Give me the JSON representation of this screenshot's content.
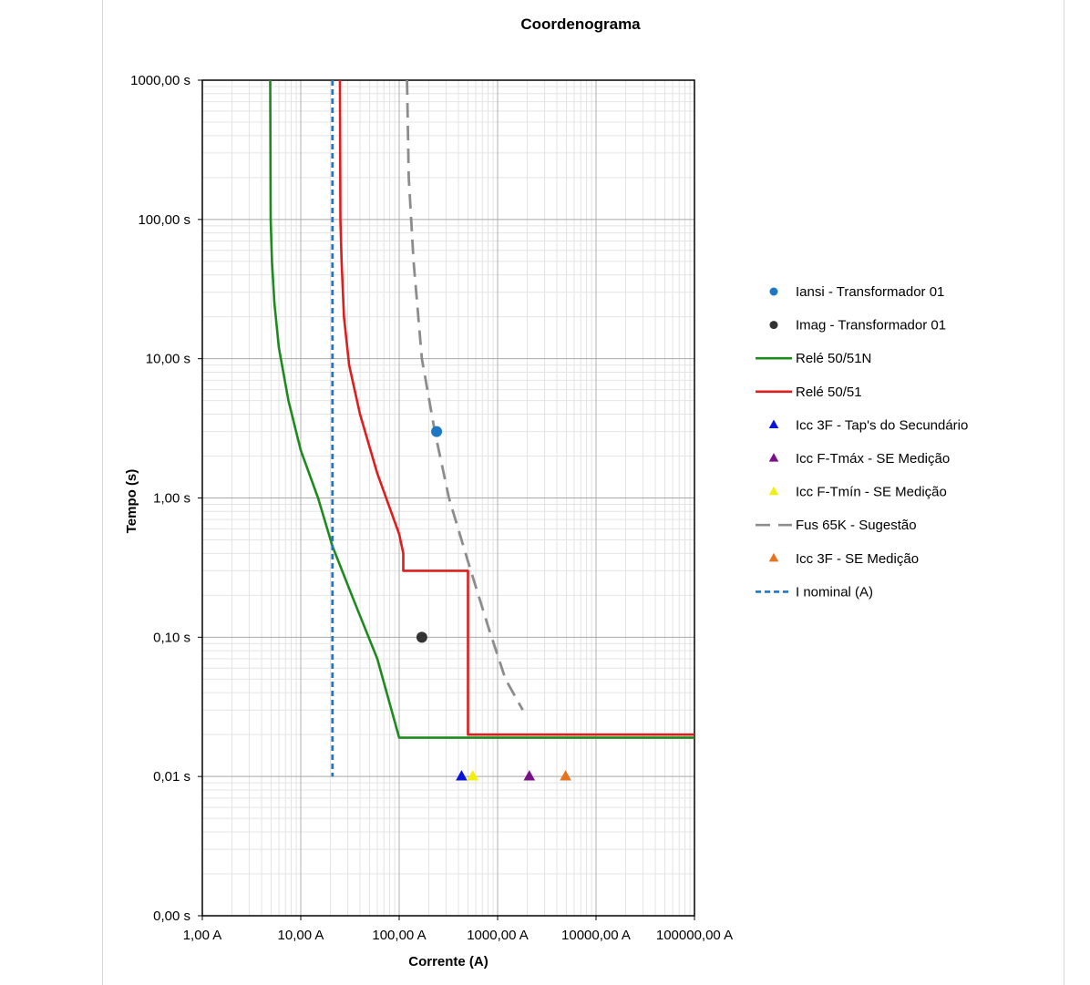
{
  "chart_data": {
    "type": "scatter",
    "title": "Coordenograma",
    "xlabel": "Corrente (A)",
    "ylabel": "Tempo (s)",
    "x_scale": "log",
    "y_scale": "log",
    "xlim": [
      1,
      100000
    ],
    "ylim": [
      0.001,
      1000
    ],
    "x_ticks": [
      {
        "value": 1,
        "label": "1,00 A"
      },
      {
        "value": 10,
        "label": "10,00 A"
      },
      {
        "value": 100,
        "label": "100,00 A"
      },
      {
        "value": 1000,
        "label": "1000,00 A"
      },
      {
        "value": 10000,
        "label": "10000,00 A"
      },
      {
        "value": 100000,
        "label": "100000,00 A"
      }
    ],
    "y_ticks": [
      {
        "value": 0.001,
        "label": "0,00 s"
      },
      {
        "value": 0.01,
        "label": "0,01 s"
      },
      {
        "value": 0.1,
        "label": "0,10 s"
      },
      {
        "value": 1,
        "label": "1,00 s"
      },
      {
        "value": 10,
        "label": "10,00 s"
      },
      {
        "value": 100,
        "label": "100,00 s"
      },
      {
        "value": 1000,
        "label": "1000,00 s"
      }
    ],
    "grid": true,
    "legend_position": "right",
    "series": [
      {
        "name": "Iansi - Transformador 01",
        "kind": "marker",
        "marker": "circle",
        "color": "#1f77c4",
        "points": [
          [
            240,
            3.0
          ]
        ]
      },
      {
        "name": "Imag - Transformador 01",
        "kind": "marker",
        "marker": "circle",
        "color": "#333333",
        "points": [
          [
            170,
            0.1
          ]
        ]
      },
      {
        "name": "Relé 50/51N",
        "kind": "line",
        "dash": "solid",
        "color": "#1e8a1e",
        "points": [
          [
            4.9,
            1000
          ],
          [
            4.95,
            100
          ],
          [
            5.1,
            50
          ],
          [
            5.4,
            25
          ],
          [
            6,
            12
          ],
          [
            7.5,
            5
          ],
          [
            10,
            2.2
          ],
          [
            15,
            1
          ],
          [
            21,
            0.45
          ],
          [
            35,
            0.18
          ],
          [
            60,
            0.07
          ],
          [
            100,
            0.019
          ],
          [
            100000,
            0.019
          ]
        ]
      },
      {
        "name": "Relé 50/51",
        "kind": "line",
        "dash": "solid",
        "color": "#e01c1c",
        "points": [
          [
            25,
            1000
          ],
          [
            25.3,
            100
          ],
          [
            26,
            50
          ],
          [
            27.5,
            20
          ],
          [
            31,
            9
          ],
          [
            40,
            4
          ],
          [
            60,
            1.5
          ],
          [
            100,
            0.55
          ],
          [
            110,
            0.4
          ],
          [
            110,
            0.3
          ],
          [
            500,
            0.3
          ],
          [
            500,
            0.02
          ],
          [
            100000,
            0.02
          ]
        ]
      },
      {
        "name": "Icc 3F - Tap's do Secundário",
        "kind": "marker",
        "marker": "triangle",
        "color": "#0a14d8",
        "points": [
          [
            430,
            0.01
          ]
        ]
      },
      {
        "name": "Icc F-Tmáx - SE Medição",
        "kind": "marker",
        "marker": "triangle",
        "color": "#7a0f8a",
        "points": [
          [
            2100,
            0.01
          ]
        ]
      },
      {
        "name": "Icc F-Tmín - SE Medição",
        "kind": "marker",
        "marker": "triangle",
        "color": "#f2f00a",
        "points": [
          [
            560,
            0.01
          ]
        ]
      },
      {
        "name": "Fus 65K - Sugestão",
        "kind": "line",
        "dash": "long-dash",
        "color": "#8c8c8c",
        "points": [
          [
            120,
            1000
          ],
          [
            125,
            200
          ],
          [
            140,
            50
          ],
          [
            170,
            10
          ],
          [
            230,
            3.0
          ],
          [
            320,
            1.0
          ],
          [
            500,
            0.35
          ],
          [
            800,
            0.12
          ],
          [
            1200,
            0.05
          ],
          [
            1800,
            0.03
          ]
        ]
      },
      {
        "name": "Icc 3F - SE Medição",
        "kind": "marker",
        "marker": "triangle",
        "color": "#e6731e",
        "points": [
          [
            4900,
            0.01
          ]
        ]
      },
      {
        "name": "I nominal (A)",
        "kind": "line",
        "dash": "short-dash",
        "color": "#1f77c4",
        "points": [
          [
            21,
            1000
          ],
          [
            21,
            0.01
          ]
        ]
      }
    ]
  }
}
